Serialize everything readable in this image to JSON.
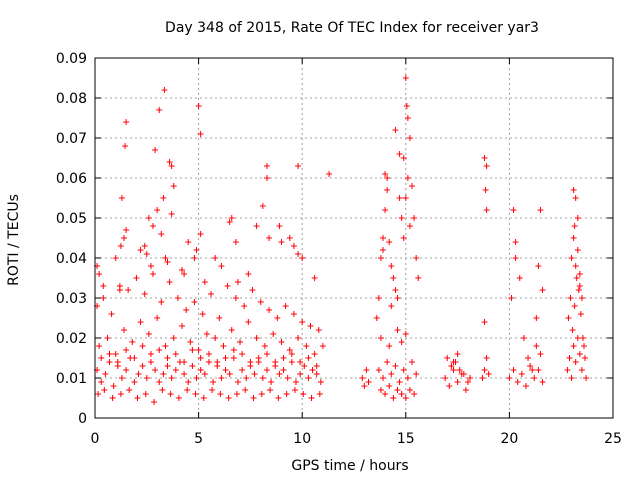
{
  "chart_data": {
    "type": "scatter",
    "title": "Day 348 of 2015, Rate Of TEC Index for receiver yar3",
    "xlabel": "GPS time / hours",
    "ylabel": "ROTI / TECUs",
    "xlim": [
      0,
      25
    ],
    "ylim": [
      0,
      0.09
    ],
    "x_ticks": [
      0,
      5,
      10,
      15,
      20,
      25
    ],
    "x_tick_labels": [
      "0",
      "5",
      "10",
      "15",
      "20",
      "25"
    ],
    "y_ticks": [
      0,
      0.01,
      0.02,
      0.03,
      0.04,
      0.05,
      0.06,
      0.07,
      0.08,
      0.09
    ],
    "y_tick_labels": [
      "0",
      "0.01",
      "0.02",
      "0.03",
      "0.04",
      "0.05",
      "0.06",
      "0.07",
      "0.08",
      "0.09"
    ],
    "grid": true,
    "legend": "none",
    "marker": "plus",
    "color": "#ff0000",
    "series": [
      {
        "x": [
          0.1,
          0.3,
          0.5,
          0.7,
          0.9,
          1.1,
          1.3,
          1.5,
          1.7,
          1.9,
          2.1,
          2.3,
          2.5,
          2.7,
          2.9,
          3.1,
          3.3,
          3.5,
          3.7,
          3.9,
          4.1,
          4.3,
          4.5,
          4.7,
          4.9,
          5.1,
          5.3,
          5.5,
          5.7,
          5.9,
          6.1,
          6.3,
          6.5,
          6.7,
          6.9,
          7.1,
          7.3,
          7.5,
          7.7,
          7.9,
          8.1,
          8.3,
          8.5,
          8.7,
          8.9,
          9.1,
          9.3,
          9.5,
          9.7,
          9.9,
          10.1,
          10.3,
          10.5,
          10.7,
          10.9,
          0.2,
          0.6,
          1.0,
          1.4,
          1.8,
          2.2,
          2.6,
          3.0,
          3.4,
          3.8,
          4.2,
          4.6,
          5.0,
          5.4,
          5.8,
          6.2,
          6.6,
          7.0,
          7.4,
          7.8,
          8.2,
          8.6,
          9.0,
          9.4,
          9.8,
          10.2,
          10.6,
          0.15,
          0.45,
          0.85,
          1.25,
          1.65,
          2.05,
          2.45,
          2.85,
          3.25,
          3.65,
          4.05,
          4.45,
          4.85,
          5.25,
          5.65,
          6.05,
          6.45,
          6.85,
          7.25,
          7.65,
          8.05,
          8.45,
          8.85,
          9.25,
          9.65,
          10.05,
          10.45,
          10.85,
          0.1,
          0.4,
          0.8,
          1.2,
          1.6,
          2.0,
          2.4,
          2.8,
          3.2,
          3.6,
          4.0,
          4.4,
          4.8,
          5.2,
          5.6,
          6.0,
          6.4,
          6.8,
          7.2,
          7.6,
          8.0,
          8.4,
          8.8,
          9.2,
          9.6,
          10.0,
          10.4,
          10.8,
          0.3,
          0.7,
          1.1,
          1.5,
          1.9,
          2.3,
          2.7,
          3.1,
          3.5,
          3.9,
          4.3,
          4.7,
          5.1,
          5.5,
          5.9,
          6.3,
          6.7,
          7.1,
          7.5,
          7.9,
          8.3,
          8.7,
          9.1,
          9.5,
          9.9,
          10.3,
          10.7,
          1.0,
          1.4,
          1.5,
          2.4,
          2.6,
          2.8,
          3.0,
          3.2,
          3.3,
          3.7,
          3.8,
          4.5,
          4.9,
          5.1,
          6.5,
          6.8,
          7.8,
          8.1,
          8.3,
          9.4,
          9.6,
          9.8,
          1.45,
          1.5,
          2.9,
          3.1,
          3.35,
          5.0,
          5.1,
          3.6,
          3.7,
          8.3,
          9.8,
          1.3,
          4.8,
          6.6,
          0.1,
          0.2,
          0.4,
          1.2,
          1.25,
          2.2,
          2.5,
          2.7,
          3.4,
          3.5,
          4.2,
          4.3,
          5.3,
          5.8,
          6.1,
          6.9,
          7.4,
          8.4,
          8.9,
          9.0,
          10.0,
          10.6,
          11.0,
          11.3,
          12.9,
          13.0,
          13.1,
          13.2,
          13.6,
          13.7,
          13.8,
          13.9,
          14.0,
          14.1,
          14.2,
          14.3,
          14.4,
          14.5,
          14.6,
          14.7,
          14.8,
          14.9,
          15.0,
          15.1,
          15.2,
          15.3,
          15.4,
          15.5,
          15.6,
          13.7,
          13.9,
          14.1,
          14.3,
          14.5,
          14.7,
          14.9,
          15.1,
          15.3,
          15.5,
          13.8,
          14.0,
          14.2,
          14.4,
          14.6,
          14.8,
          15.0,
          15.2,
          15.4,
          13.8,
          14.2,
          14.6,
          14.8,
          15.0,
          14.5,
          14.7,
          15.05,
          15.1,
          14.0,
          14.1,
          15.2,
          14.3,
          14.9,
          15.0,
          13.9,
          16.9,
          17.1,
          17.3,
          17.5,
          17.7,
          17.9,
          18.1,
          17.0,
          17.2,
          17.4,
          17.6,
          17.8,
          18.0,
          17.5,
          17.3,
          18.7,
          18.8,
          18.9,
          19.0,
          18.8,
          18.9,
          18.85,
          18.9,
          18.8,
          20.0,
          20.2,
          20.4,
          20.6,
          20.8,
          21.0,
          21.2,
          21.4,
          21.6,
          20.1,
          20.3,
          20.5,
          20.7,
          20.9,
          21.1,
          21.3,
          21.5,
          20.2,
          20.3,
          21.5,
          21.4,
          21.6,
          21.3,
          22.8,
          22.9,
          23.0,
          23.1,
          23.2,
          23.3,
          23.4,
          23.5,
          23.6,
          23.7,
          22.85,
          22.95,
          23.05,
          23.15,
          23.25,
          23.35,
          23.45,
          23.55,
          23.65,
          23.0,
          23.1,
          23.2,
          23.3,
          23.4,
          23.5,
          23.1,
          23.2,
          23.15,
          23.3,
          23.4
        ],
        "y": [
          0.012,
          0.009,
          0.011,
          0.014,
          0.008,
          0.013,
          0.01,
          0.012,
          0.015,
          0.009,
          0.011,
          0.013,
          0.01,
          0.014,
          0.012,
          0.009,
          0.011,
          0.013,
          0.01,
          0.012,
          0.014,
          0.011,
          0.009,
          0.013,
          0.01,
          0.012,
          0.011,
          0.014,
          0.009,
          0.013,
          0.01,
          0.012,
          0.011,
          0.015,
          0.009,
          0.012,
          0.01,
          0.013,
          0.011,
          0.014,
          0.01,
          0.012,
          0.009,
          0.013,
          0.011,
          0.012,
          0.01,
          0.014,
          0.009,
          0.011,
          0.013,
          0.01,
          0.012,
          0.011,
          0.009,
          0.018,
          0.02,
          0.016,
          0.022,
          0.019,
          0.024,
          0.021,
          0.025,
          0.018,
          0.02,
          0.023,
          0.019,
          0.017,
          0.021,
          0.02,
          0.018,
          0.022,
          0.019,
          0.024,
          0.02,
          0.018,
          0.021,
          0.019,
          0.017,
          0.02,
          0.018,
          0.016,
          0.006,
          0.007,
          0.005,
          0.006,
          0.007,
          0.005,
          0.006,
          0.004,
          0.007,
          0.006,
          0.005,
          0.007,
          0.006,
          0.005,
          0.007,
          0.006,
          0.005,
          0.006,
          0.007,
          0.005,
          0.006,
          0.007,
          0.005,
          0.006,
          0.007,
          0.006,
          0.005,
          0.006,
          0.028,
          0.03,
          0.026,
          0.033,
          0.032,
          0.035,
          0.031,
          0.036,
          0.029,
          0.034,
          0.03,
          0.027,
          0.029,
          0.026,
          0.031,
          0.025,
          0.033,
          0.03,
          0.028,
          0.032,
          0.029,
          0.027,
          0.025,
          0.028,
          0.026,
          0.024,
          0.023,
          0.022,
          0.015,
          0.016,
          0.014,
          0.017,
          0.015,
          0.018,
          0.016,
          0.017,
          0.015,
          0.016,
          0.014,
          0.017,
          0.015,
          0.016,
          0.014,
          0.015,
          0.017,
          0.016,
          0.014,
          0.015,
          0.016,
          0.014,
          0.015,
          0.016,
          0.014,
          0.015,
          0.013,
          0.04,
          0.045,
          0.047,
          0.043,
          0.05,
          0.048,
          0.052,
          0.046,
          0.055,
          0.051,
          0.058,
          0.044,
          0.042,
          0.046,
          0.049,
          0.044,
          0.048,
          0.053,
          0.06,
          0.045,
          0.043,
          0.041,
          0.068,
          0.074,
          0.067,
          0.077,
          0.082,
          0.078,
          0.071,
          0.064,
          0.063,
          0.063,
          0.063,
          0.055,
          0.04,
          0.05,
          0.038,
          0.036,
          0.033,
          0.032,
          0.043,
          0.042,
          0.041,
          0.038,
          0.04,
          0.039,
          0.037,
          0.036,
          0.034,
          0.04,
          0.038,
          0.034,
          0.036,
          0.045,
          0.048,
          0.044,
          0.04,
          0.035,
          0.018,
          0.061,
          0.01,
          0.008,
          0.012,
          0.009,
          0.025,
          0.03,
          0.04,
          0.045,
          0.052,
          0.06,
          0.044,
          0.038,
          0.035,
          0.032,
          0.03,
          0.055,
          0.05,
          0.065,
          0.085,
          0.075,
          0.07,
          0.058,
          0.05,
          0.04,
          0.035,
          0.012,
          0.01,
          0.014,
          0.011,
          0.013,
          0.009,
          0.012,
          0.01,
          0.014,
          0.011,
          0.007,
          0.006,
          0.008,
          0.005,
          0.007,
          0.006,
          0.005,
          0.007,
          0.006,
          0.02,
          0.018,
          0.022,
          0.019,
          0.021,
          0.072,
          0.066,
          0.078,
          0.06,
          0.061,
          0.057,
          0.048,
          0.028,
          0.045,
          0.055,
          0.042,
          0.01,
          0.008,
          0.012,
          0.009,
          0.011,
          0.007,
          0.01,
          0.015,
          0.013,
          0.014,
          0.012,
          0.011,
          0.009,
          0.016,
          0.014,
          0.01,
          0.012,
          0.015,
          0.011,
          0.065,
          0.063,
          0.057,
          0.052,
          0.024,
          0.01,
          0.012,
          0.009,
          0.011,
          0.008,
          0.013,
          0.01,
          0.012,
          0.009,
          0.03,
          0.04,
          0.035,
          0.02,
          0.015,
          0.012,
          0.018,
          0.016,
          0.052,
          0.044,
          0.052,
          0.038,
          0.032,
          0.025,
          0.012,
          0.015,
          0.01,
          0.018,
          0.014,
          0.02,
          0.016,
          0.012,
          0.018,
          0.01,
          0.025,
          0.03,
          0.022,
          0.028,
          0.035,
          0.032,
          0.026,
          0.02,
          0.015,
          0.04,
          0.045,
          0.038,
          0.042,
          0.036,
          0.03,
          0.057,
          0.055,
          0.048,
          0.05,
          0.033
        ]
      }
    ]
  }
}
